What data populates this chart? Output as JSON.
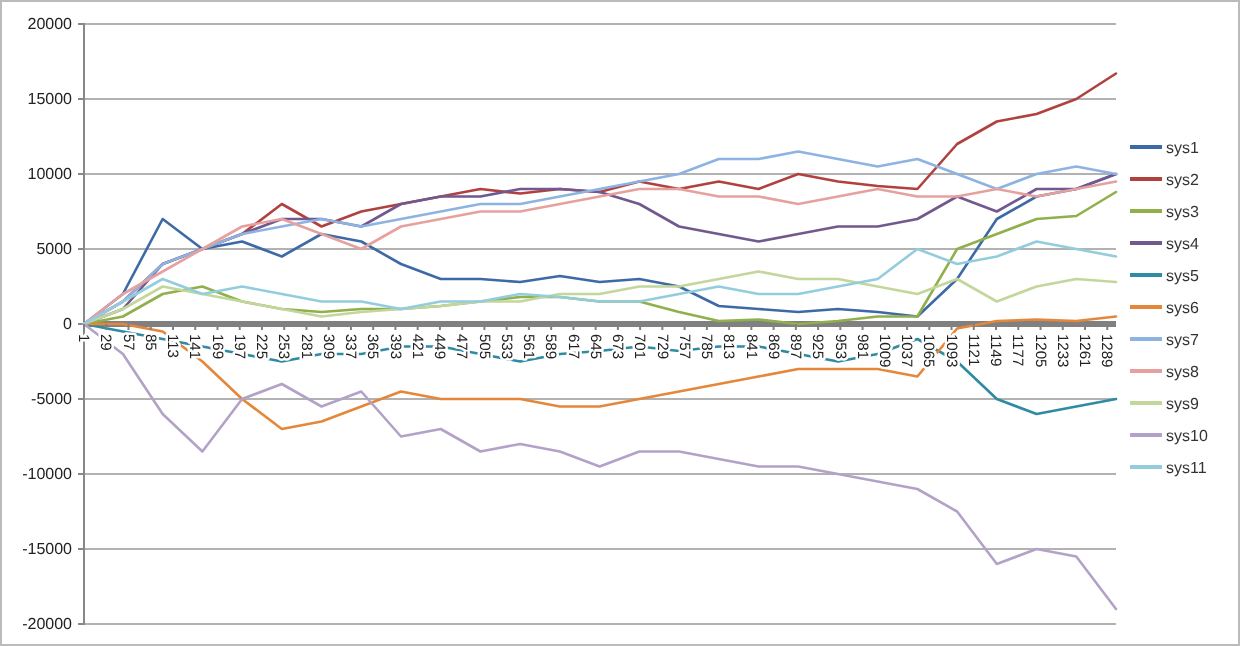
{
  "chart_data": {
    "type": "line",
    "x": [
      1,
      50,
      100,
      150,
      200,
      250,
      300,
      350,
      400,
      450,
      500,
      550,
      600,
      650,
      700,
      750,
      800,
      850,
      900,
      950,
      1000,
      1050,
      1100,
      1150,
      1200,
      1250,
      1300
    ],
    "xlim": [
      1,
      1300
    ],
    "xticks": [
      1,
      29,
      57,
      85,
      113,
      141,
      169,
      197,
      225,
      253,
      281,
      309,
      337,
      365,
      393,
      421,
      449,
      477,
      505,
      533,
      561,
      589,
      617,
      645,
      673,
      701,
      729,
      757,
      785,
      813,
      841,
      869,
      897,
      925,
      953,
      981,
      1009,
      1037,
      1065,
      1093,
      1121,
      1149,
      1177,
      1205,
      1233,
      1261,
      1289
    ],
    "ylim": [
      -20000,
      20000
    ],
    "yticks": [
      -20000,
      -15000,
      -10000,
      -5000,
      0,
      5000,
      10000,
      15000,
      20000
    ],
    "grid": "y",
    "legend": "right",
    "marker": "none",
    "line_style": "solid",
    "series": [
      {
        "name": "sys1",
        "color": "#3d6aa6",
        "values": [
          0,
          2000,
          7000,
          5000,
          5500,
          4500,
          6000,
          5500,
          4000,
          3000,
          3000,
          2800,
          3200,
          2800,
          3000,
          2500,
          1200,
          1000,
          800,
          1000,
          800,
          500,
          3000,
          7000,
          8500,
          9000,
          10000
        ]
      },
      {
        "name": "sys2",
        "color": "#b0413e",
        "values": [
          0,
          1500,
          4000,
          5000,
          6000,
          8000,
          6500,
          7500,
          8000,
          8500,
          9000,
          8700,
          9000,
          8800,
          9500,
          9000,
          9500,
          9000,
          10000,
          9500,
          9200,
          9000,
          12000,
          13500,
          14000,
          15000,
          16700
        ]
      },
      {
        "name": "sys3",
        "color": "#8fb04a",
        "values": [
          0,
          500,
          2000,
          2500,
          1500,
          1000,
          800,
          1000,
          1000,
          1200,
          1500,
          1800,
          1800,
          1500,
          1500,
          800,
          200,
          300,
          0,
          200,
          500,
          500,
          5000,
          6000,
          7000,
          7200,
          8800
        ]
      },
      {
        "name": "sys4",
        "color": "#71588f",
        "values": [
          0,
          1000,
          4000,
          5000,
          6000,
          7000,
          7000,
          6500,
          8000,
          8500,
          8500,
          9000,
          9000,
          8800,
          8000,
          6500,
          6000,
          5500,
          6000,
          6500,
          6500,
          7000,
          8500,
          7500,
          9000,
          9000,
          10000
        ]
      },
      {
        "name": "sys5",
        "color": "#2e8ba3",
        "values": [
          0,
          -500,
          -1000,
          -1500,
          -2000,
          -2500,
          -2000,
          -2000,
          -1500,
          -1500,
          -2000,
          -2500,
          -2000,
          -1800,
          -1500,
          -1800,
          -1500,
          -1500,
          -2000,
          -2500,
          -2000,
          -1000,
          -2500,
          -5000,
          -6000,
          -5500,
          -5000
        ]
      },
      {
        "name": "sys6",
        "color": "#e4873a",
        "values": [
          0,
          0,
          -500,
          -2500,
          -5000,
          -7000,
          -6500,
          -5500,
          -4500,
          -5000,
          -5000,
          -5000,
          -5500,
          -5500,
          -5000,
          -4500,
          -4000,
          -3500,
          -3000,
          -3000,
          -3000,
          -3500,
          -300,
          200,
          300,
          200,
          500
        ]
      },
      {
        "name": "sys7",
        "color": "#8db3e2",
        "values": [
          0,
          1500,
          4000,
          5000,
          6000,
          6500,
          7000,
          6500,
          7000,
          7500,
          8000,
          8000,
          8500,
          9000,
          9500,
          10000,
          11000,
          11000,
          11500,
          11000,
          10500,
          11000,
          10000,
          9000,
          10000,
          10500,
          10000
        ]
      },
      {
        "name": "sys8",
        "color": "#e6a19e",
        "values": [
          0,
          2000,
          3500,
          5000,
          6500,
          7000,
          6000,
          5000,
          6500,
          7000,
          7500,
          7500,
          8000,
          8500,
          9000,
          9000,
          8500,
          8500,
          8000,
          8500,
          9000,
          8500,
          8500,
          9000,
          8500,
          9000,
          9500
        ]
      },
      {
        "name": "sys9",
        "color": "#c3d69b",
        "values": [
          0,
          1000,
          2500,
          2000,
          1500,
          1000,
          500,
          800,
          1000,
          1200,
          1500,
          1500,
          2000,
          2000,
          2500,
          2500,
          3000,
          3500,
          3000,
          3000,
          2500,
          2000,
          3000,
          1500,
          2500,
          3000,
          2800
        ]
      },
      {
        "name": "sys10",
        "color": "#b3a2c7",
        "values": [
          0,
          -2000,
          -6000,
          -8500,
          -5000,
          -4000,
          -5500,
          -4500,
          -7500,
          -7000,
          -8500,
          -8000,
          -8500,
          -9500,
          -8500,
          -8500,
          -9000,
          -9500,
          -9500,
          -10000,
          -10500,
          -11000,
          -12500,
          -16000,
          -15000,
          -15500,
          -19000
        ]
      },
      {
        "name": "sys11",
        "color": "#93cddd",
        "values": [
          0,
          1500,
          3000,
          2000,
          2500,
          2000,
          1500,
          1500,
          1000,
          1500,
          1500,
          2000,
          1800,
          1500,
          1500,
          2000,
          2500,
          2000,
          2000,
          2500,
          3000,
          5000,
          4000,
          4500,
          5500,
          5000,
          4500
        ]
      }
    ]
  }
}
